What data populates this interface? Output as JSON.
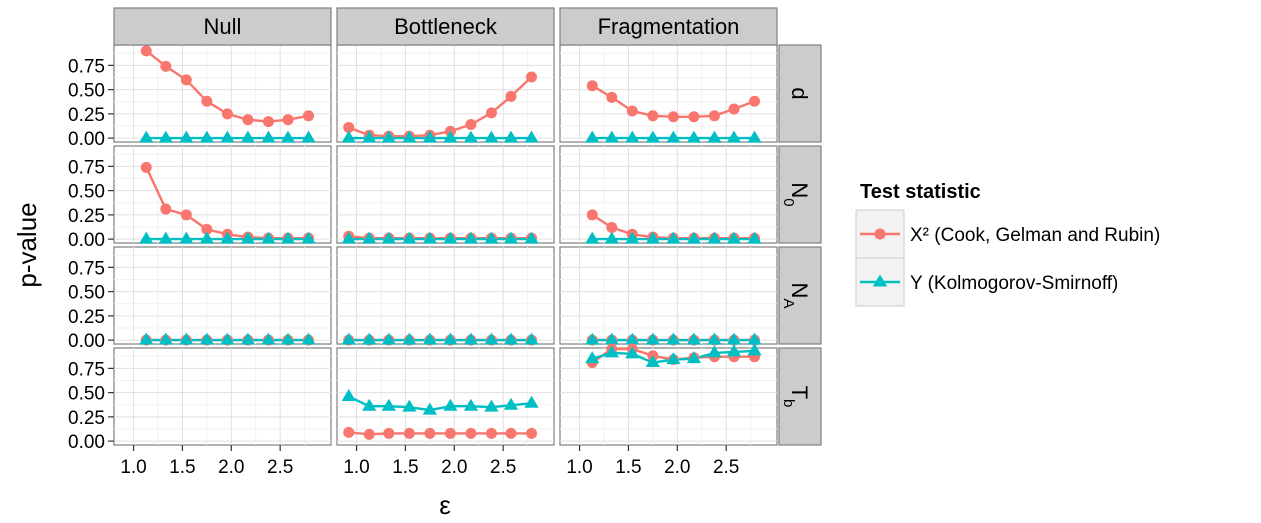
{
  "chart_data": {
    "type": "line",
    "xlabel": "ε",
    "ylabel": "p-value",
    "xlim": [
      0.8,
      3.02
    ],
    "ylim": [
      -0.04,
      0.96
    ],
    "x_ticks": [
      1.0,
      1.5,
      2.0,
      2.5
    ],
    "x_tick_labels": [
      "1.0",
      "1.5",
      "2.0",
      "2.5"
    ],
    "y_ticks": [
      0.0,
      0.25,
      0.5,
      0.75
    ],
    "y_tick_labels": [
      "0.00",
      "0.25",
      "0.50",
      "0.75"
    ],
    "columns": [
      "Null",
      "Bottleneck",
      "Fragmentation"
    ],
    "rows": [
      {
        "base": "d",
        "sub": ""
      },
      {
        "base": "N",
        "sub": "0"
      },
      {
        "base": "N",
        "sub": "A"
      },
      {
        "base": "T",
        "sub": "b"
      }
    ],
    "grid": true,
    "legend": {
      "title": "Test statistic",
      "position": "right",
      "entries": [
        {
          "label": "X² (Cook, Gelman and Rubin)",
          "color": "#F8766D",
          "marker": "circle"
        },
        {
          "label": "Y (Kolmogorov-Smirnoff)",
          "color": "#00BFC4",
          "marker": "triangle"
        }
      ]
    },
    "panels": [
      {
        "row": 0,
        "col": 0,
        "series": [
          {
            "x": [
              1.13,
              1.33,
              1.54,
              1.75,
              1.96,
              2.17,
              2.38,
              2.58,
              2.79
            ],
            "values": [
              0.9,
              0.74,
              0.6,
              0.38,
              0.25,
              0.19,
              0.17,
              0.19,
              0.23
            ]
          },
          {
            "x": [
              1.13,
              1.33,
              1.54,
              1.75,
              1.96,
              2.17,
              2.38,
              2.58,
              2.79
            ],
            "values": [
              0.0,
              0.0,
              0.0,
              0.0,
              0.0,
              0.0,
              0.0,
              0.0,
              0.0
            ]
          }
        ]
      },
      {
        "row": 0,
        "col": 1,
        "series": [
          {
            "x": [
              0.92,
              1.13,
              1.33,
              1.54,
              1.75,
              1.96,
              2.17,
              2.38,
              2.58,
              2.79
            ],
            "values": [
              0.11,
              0.03,
              0.02,
              0.02,
              0.03,
              0.07,
              0.14,
              0.26,
              0.43,
              0.63
            ]
          },
          {
            "x": [
              0.92,
              1.13,
              1.33,
              1.54,
              1.75,
              1.96,
              2.17,
              2.38,
              2.58,
              2.79
            ],
            "values": [
              0.0,
              0.0,
              0.0,
              0.0,
              0.0,
              0.0,
              0.0,
              0.0,
              0.0,
              0.0
            ]
          }
        ]
      },
      {
        "row": 0,
        "col": 2,
        "series": [
          {
            "x": [
              1.13,
              1.33,
              1.54,
              1.75,
              1.96,
              2.17,
              2.38,
              2.58,
              2.79
            ],
            "values": [
              0.54,
              0.42,
              0.28,
              0.23,
              0.22,
              0.22,
              0.23,
              0.3,
              0.38
            ]
          },
          {
            "x": [
              1.13,
              1.33,
              1.54,
              1.75,
              1.96,
              2.17,
              2.38,
              2.58,
              2.79
            ],
            "values": [
              0.0,
              0.0,
              0.0,
              0.0,
              0.0,
              0.0,
              0.0,
              0.0,
              0.0
            ]
          }
        ]
      },
      {
        "row": 1,
        "col": 0,
        "series": [
          {
            "x": [
              1.13,
              1.33,
              1.54,
              1.75,
              1.96,
              2.17,
              2.38,
              2.58,
              2.79
            ],
            "values": [
              0.74,
              0.31,
              0.25,
              0.1,
              0.05,
              0.02,
              0.01,
              0.01,
              0.01
            ]
          },
          {
            "x": [
              1.13,
              1.33,
              1.54,
              1.75,
              1.96,
              2.17,
              2.38,
              2.58,
              2.79
            ],
            "values": [
              0.0,
              0.0,
              0.0,
              0.0,
              0.0,
              0.0,
              0.0,
              0.0,
              0.0
            ]
          }
        ]
      },
      {
        "row": 1,
        "col": 1,
        "series": [
          {
            "x": [
              0.92,
              1.13,
              1.33,
              1.54,
              1.75,
              1.96,
              2.17,
              2.38,
              2.58,
              2.79
            ],
            "values": [
              0.03,
              0.01,
              0.01,
              0.01,
              0.01,
              0.01,
              0.01,
              0.01,
              0.01,
              0.01
            ]
          },
          {
            "x": [
              0.92,
              1.13,
              1.33,
              1.54,
              1.75,
              1.96,
              2.17,
              2.38,
              2.58,
              2.79
            ],
            "values": [
              0.0,
              0.0,
              0.0,
              0.0,
              0.0,
              0.0,
              0.0,
              0.0,
              0.0,
              0.0
            ]
          }
        ]
      },
      {
        "row": 1,
        "col": 2,
        "series": [
          {
            "x": [
              1.13,
              1.33,
              1.54,
              1.75,
              1.96,
              2.17,
              2.38,
              2.58,
              2.79
            ],
            "values": [
              0.25,
              0.12,
              0.05,
              0.02,
              0.01,
              0.01,
              0.01,
              0.01,
              0.01
            ]
          },
          {
            "x": [
              1.13,
              1.33,
              1.54,
              1.75,
              1.96,
              2.17,
              2.38,
              2.58,
              2.79
            ],
            "values": [
              0.0,
              0.0,
              0.0,
              0.0,
              0.0,
              0.0,
              0.0,
              0.0,
              0.0
            ]
          }
        ]
      },
      {
        "row": 2,
        "col": 0,
        "series": [
          {
            "x": [
              1.13,
              1.33,
              1.54,
              1.75,
              1.96,
              2.17,
              2.38,
              2.58,
              2.79
            ],
            "values": [
              0.0,
              0.0,
              0.0,
              0.0,
              0.0,
              0.0,
              0.0,
              0.0,
              0.0
            ]
          },
          {
            "x": [
              1.13,
              1.33,
              1.54,
              1.75,
              1.96,
              2.17,
              2.38,
              2.58,
              2.79
            ],
            "values": [
              0.0,
              0.0,
              0.0,
              0.0,
              0.0,
              0.0,
              0.0,
              0.0,
              0.0
            ]
          }
        ]
      },
      {
        "row": 2,
        "col": 1,
        "series": [
          {
            "x": [
              0.92,
              1.13,
              1.33,
              1.54,
              1.75,
              1.96,
              2.17,
              2.38,
              2.58,
              2.79
            ],
            "values": [
              0.0,
              0.0,
              0.0,
              0.0,
              0.0,
              0.0,
              0.0,
              0.0,
              0.0,
              0.0
            ]
          },
          {
            "x": [
              0.92,
              1.13,
              1.33,
              1.54,
              1.75,
              1.96,
              2.17,
              2.38,
              2.58,
              2.79
            ],
            "values": [
              0.0,
              0.0,
              0.0,
              0.0,
              0.0,
              0.0,
              0.0,
              0.0,
              0.0,
              0.0
            ]
          }
        ]
      },
      {
        "row": 2,
        "col": 2,
        "series": [
          {
            "x": [
              1.13,
              1.33,
              1.54,
              1.75,
              1.96,
              2.17,
              2.38,
              2.58,
              2.79
            ],
            "values": [
              0.0,
              0.0,
              0.0,
              0.0,
              0.0,
              0.0,
              0.0,
              0.0,
              0.0
            ]
          },
          {
            "x": [
              1.13,
              1.33,
              1.54,
              1.75,
              1.96,
              2.17,
              2.38,
              2.58,
              2.79
            ],
            "values": [
              0.0,
              0.0,
              0.0,
              0.0,
              0.0,
              0.0,
              0.0,
              0.0,
              0.0
            ]
          }
        ]
      },
      {
        "row": 3,
        "col": 0,
        "series": [
          {
            "x": [],
            "values": []
          },
          {
            "x": [],
            "values": []
          }
        ]
      },
      {
        "row": 3,
        "col": 1,
        "series": [
          {
            "x": [
              0.92,
              1.13,
              1.33,
              1.54,
              1.75,
              1.96,
              2.17,
              2.38,
              2.58,
              2.79
            ],
            "values": [
              0.09,
              0.07,
              0.08,
              0.08,
              0.08,
              0.08,
              0.08,
              0.08,
              0.08,
              0.08
            ]
          },
          {
            "x": [
              0.92,
              1.13,
              1.33,
              1.54,
              1.75,
              1.96,
              2.17,
              2.38,
              2.58,
              2.79
            ],
            "values": [
              0.46,
              0.36,
              0.36,
              0.35,
              0.32,
              0.36,
              0.36,
              0.35,
              0.37,
              0.39
            ]
          }
        ]
      },
      {
        "row": 3,
        "col": 2,
        "series": [
          {
            "x": [
              1.13,
              1.33,
              1.54,
              1.75,
              1.96,
              2.17,
              2.38,
              2.58,
              2.79
            ],
            "values": [
              0.81,
              0.95,
              0.95,
              0.88,
              0.84,
              0.86,
              0.87,
              0.87,
              0.87
            ]
          },
          {
            "x": [
              1.13,
              1.33,
              1.54,
              1.75,
              1.96,
              2.17,
              2.38,
              2.58,
              2.79
            ],
            "values": [
              0.85,
              0.91,
              0.9,
              0.81,
              0.84,
              0.85,
              0.91,
              0.92,
              0.93
            ]
          }
        ]
      }
    ]
  }
}
